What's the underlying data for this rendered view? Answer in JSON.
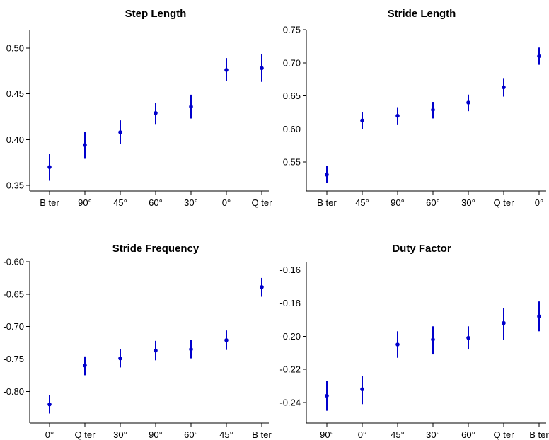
{
  "colors": {
    "marker": "#0000cc",
    "axis": "#000000",
    "background": "#ffffff"
  },
  "chart_data": [
    {
      "type": "scatter",
      "style": "point-with-error-bars",
      "title": "Step Length",
      "xlabel": "",
      "ylabel": "",
      "categories": [
        "B ter",
        "90°",
        "45°",
        "60°",
        "30°",
        "0°",
        "Q ter"
      ],
      "values": [
        0.37,
        0.394,
        0.408,
        0.429,
        0.436,
        0.476,
        0.478
      ],
      "error_low": [
        0.355,
        0.379,
        0.395,
        0.417,
        0.423,
        0.464,
        0.463
      ],
      "error_high": [
        0.384,
        0.408,
        0.421,
        0.44,
        0.449,
        0.489,
        0.493
      ],
      "ylim": [
        0.35,
        0.52
      ],
      "yticks": [
        0.35,
        0.4,
        0.45,
        0.5
      ],
      "ytick_labels": [
        "0.35",
        "0.40",
        "0.45",
        "0.50"
      ],
      "grid": false
    },
    {
      "type": "scatter",
      "style": "point-with-error-bars",
      "title": "Stride Length",
      "xlabel": "",
      "ylabel": "",
      "categories": [
        "B ter",
        "45°",
        "90°",
        "60°",
        "30°",
        "Q ter",
        "0°"
      ],
      "values": [
        0.531,
        0.613,
        0.62,
        0.629,
        0.64,
        0.663,
        0.71
      ],
      "error_low": [
        0.519,
        0.6,
        0.607,
        0.616,
        0.627,
        0.649,
        0.697
      ],
      "error_high": [
        0.544,
        0.626,
        0.633,
        0.641,
        0.652,
        0.677,
        0.723
      ],
      "ylim": [
        0.515,
        0.75
      ],
      "yticks": [
        0.55,
        0.6,
        0.65,
        0.7,
        0.75
      ],
      "ytick_labels": [
        "0.55",
        "0.60",
        "0.65",
        "0.70",
        "0.75"
      ],
      "grid": false
    },
    {
      "type": "scatter",
      "style": "point-with-error-bars",
      "title": "Stride Frequency",
      "xlabel": "",
      "ylabel": "",
      "categories": [
        "0°",
        "Q ter",
        "30°",
        "90°",
        "60°",
        "45°",
        "B ter"
      ],
      "values": [
        -0.82,
        -0.76,
        -0.749,
        -0.737,
        -0.735,
        -0.721,
        -0.639
      ],
      "error_low": [
        -0.834,
        -0.775,
        -0.763,
        -0.752,
        -0.749,
        -0.736,
        -0.654
      ],
      "error_high": [
        -0.806,
        -0.746,
        -0.735,
        -0.722,
        -0.721,
        -0.706,
        -0.625
      ],
      "ylim": [
        -0.84,
        -0.6
      ],
      "yticks": [
        -0.8,
        -0.75,
        -0.7,
        -0.65,
        -0.6
      ],
      "ytick_labels": [
        "-0.80",
        "-0.75",
        "-0.70",
        "-0.65",
        "-0.60"
      ],
      "grid": false
    },
    {
      "type": "scatter",
      "style": "point-with-error-bars",
      "title": "Duty Factor",
      "xlabel": "",
      "ylabel": "",
      "categories": [
        "90°",
        "0°",
        "45°",
        "30°",
        "60°",
        "Q ter",
        "B ter"
      ],
      "values": [
        -0.236,
        -0.232,
        -0.205,
        -0.202,
        -0.201,
        -0.192,
        -0.188
      ],
      "error_low": [
        -0.245,
        -0.241,
        -0.213,
        -0.211,
        -0.208,
        -0.202,
        -0.197
      ],
      "error_high": [
        -0.227,
        -0.224,
        -0.197,
        -0.194,
        -0.194,
        -0.183,
        -0.179
      ],
      "ylim": [
        -0.249,
        -0.155
      ],
      "yticks": [
        -0.24,
        -0.22,
        -0.2,
        -0.18,
        -0.16
      ],
      "ytick_labels": [
        "-0.24",
        "-0.22",
        "-0.20",
        "-0.18",
        "-0.16"
      ],
      "grid": false
    }
  ]
}
